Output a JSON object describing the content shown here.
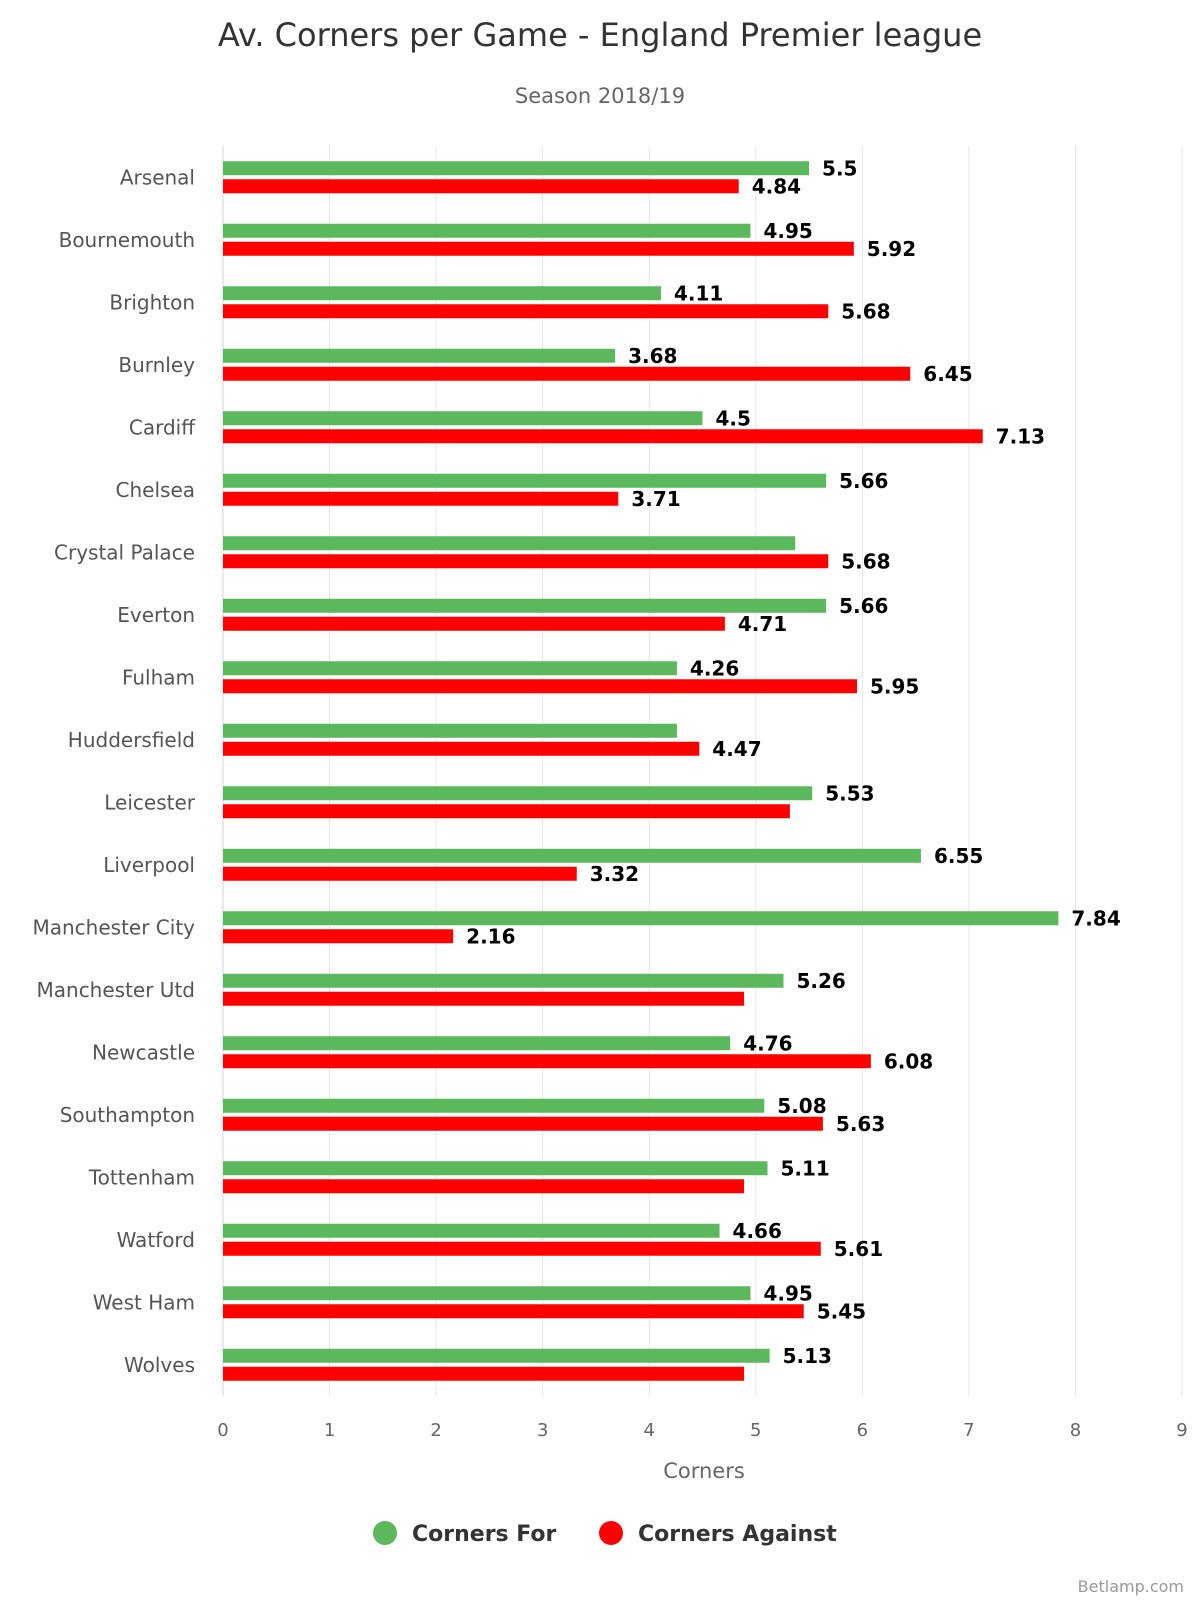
{
  "chart_data": {
    "type": "bar",
    "orientation": "horizontal",
    "title": "Av. Corners per Game - England Premier league",
    "subtitle": "Season 2018/19",
    "xlabel": "Corners",
    "ylabel": "",
    "xlim": [
      0,
      9
    ],
    "ticks": [
      0,
      1,
      2,
      3,
      4,
      5,
      6,
      7,
      8,
      9
    ],
    "grid": true,
    "legend_position": "bottom-center",
    "categories": [
      "Arsenal",
      "Bournemouth",
      "Brighton",
      "Burnley",
      "Cardiff",
      "Chelsea",
      "Crystal Palace",
      "Everton",
      "Fulham",
      "Huddersfield",
      "Leicester",
      "Liverpool",
      "Manchester City",
      "Manchester Utd",
      "Newcastle",
      "Southampton",
      "Tottenham",
      "Watford",
      "West Ham",
      "Wolves"
    ],
    "series": [
      {
        "name": "Corners For",
        "color": "#5cb85c",
        "values": [
          5.5,
          4.95,
          4.11,
          3.68,
          4.5,
          5.66,
          5.37,
          5.66,
          4.26,
          4.26,
          5.53,
          6.55,
          7.84,
          5.26,
          4.76,
          5.08,
          5.11,
          4.66,
          4.95,
          5.13
        ],
        "labels": [
          "5.5",
          "4.95",
          "4.11",
          "3.68",
          "4.5",
          "5.66",
          "",
          "5.66",
          "4.26",
          "",
          "5.53",
          "6.55",
          "7.84",
          "5.26",
          "4.76",
          "5.08",
          "5.11",
          "4.66",
          "4.95",
          "5.13"
        ]
      },
      {
        "name": "Corners Against",
        "color": "#ff0000",
        "values": [
          4.84,
          5.92,
          5.68,
          6.45,
          7.13,
          3.71,
          5.68,
          4.71,
          5.95,
          4.47,
          5.32,
          3.32,
          2.16,
          4.89,
          6.08,
          5.63,
          4.89,
          5.61,
          5.45,
          4.89
        ],
        "labels": [
          "4.84",
          "5.92",
          "5.68",
          "6.45",
          "7.13",
          "3.71",
          "5.68",
          "4.71",
          "5.95",
          "4.47",
          "",
          "3.32",
          "2.16",
          "",
          "6.08",
          "5.63",
          "",
          "5.61",
          "5.45",
          ""
        ]
      }
    ]
  },
  "credit": "Betlamp.com"
}
